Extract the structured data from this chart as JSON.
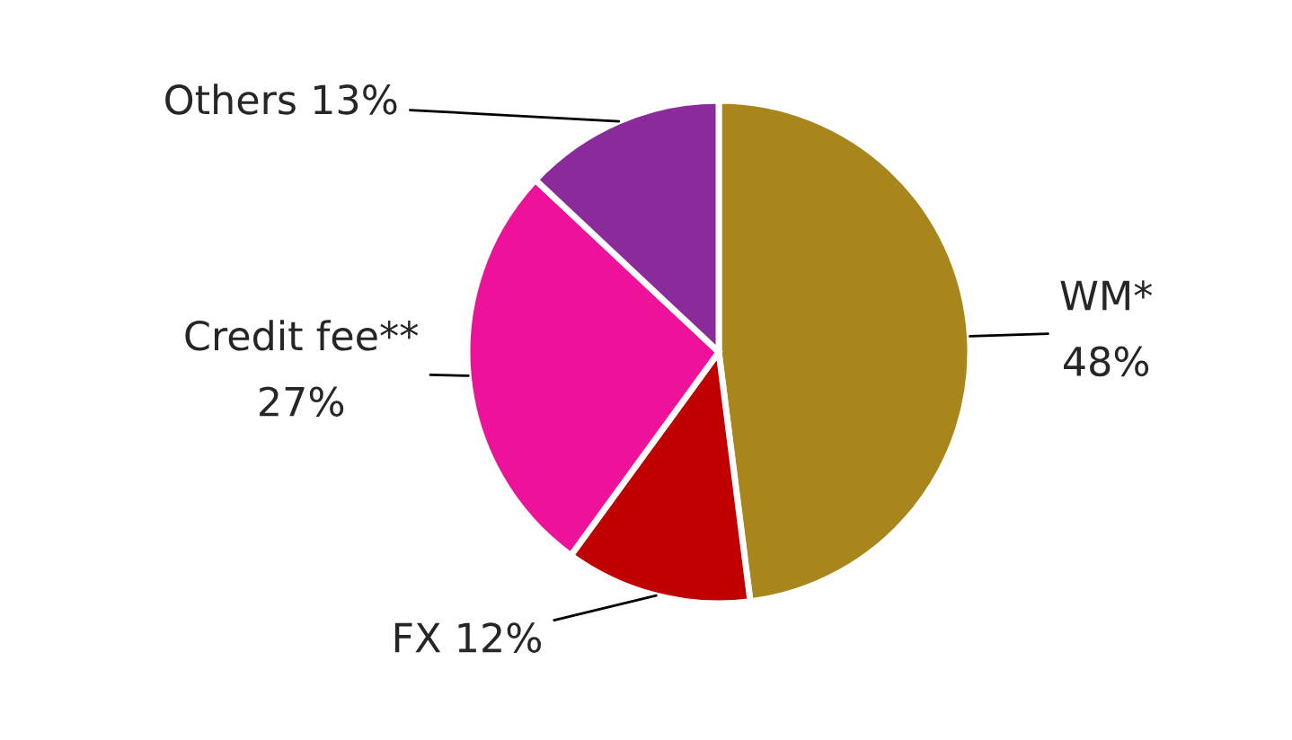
{
  "chart_data": {
    "type": "pie",
    "categories": [
      "WM*",
      "FX",
      "Credit fee**",
      "Others"
    ],
    "values": [
      48,
      12,
      27,
      13
    ],
    "value_labels": [
      "48%",
      "12%",
      "27%",
      "13%"
    ],
    "colors": [
      "#a8861c",
      "#c00000",
      "#ee1199",
      "#8b2a9b"
    ]
  }
}
